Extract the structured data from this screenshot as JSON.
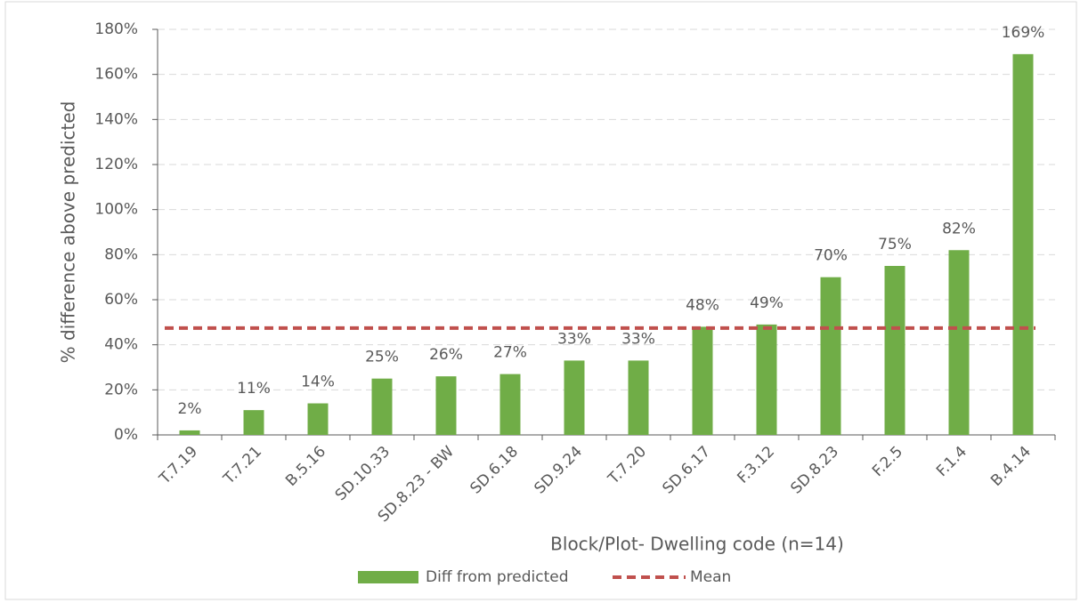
{
  "chart_data": {
    "type": "bar",
    "x_label": "Block/Plot- Dwelling code (n=14)",
    "y_label": "% difference above predicted",
    "categories": [
      "T.7.19",
      "T.7.21",
      "B.5.16",
      "SD.10.33",
      "SD.8.23 - BW",
      "SD.6.18",
      "SD.9.24",
      "T.7.20",
      "SD.6.17",
      "F.3.12",
      "SD.8.23",
      "F.2.5",
      "F.1.4",
      "B.4.14"
    ],
    "series": [
      {
        "name": "Diff from predicted",
        "color": "#70ad47",
        "values": [
          2,
          11,
          14,
          25,
          26,
          27,
          33,
          33,
          48,
          49,
          70,
          75,
          82,
          169
        ],
        "value_labels": [
          "2%",
          "11%",
          "14%",
          "25%",
          "26%",
          "27%",
          "33%",
          "33%",
          "48%",
          "49%",
          "70%",
          "75%",
          "82%",
          "169%"
        ]
      }
    ],
    "mean": {
      "name": "Mean",
      "color": "#c0504d",
      "value": 47.4
    },
    "ylim": [
      0,
      180
    ],
    "yticks": [
      {
        "value": 0,
        "label": "0%"
      },
      {
        "value": 20,
        "label": "20%"
      },
      {
        "value": 40,
        "label": "40%"
      },
      {
        "value": 60,
        "label": "60%"
      },
      {
        "value": 80,
        "label": "80%"
      },
      {
        "value": 100,
        "label": "100%"
      },
      {
        "value": 120,
        "label": "120%"
      },
      {
        "value": 140,
        "label": "140%"
      },
      {
        "value": 160,
        "label": "160%"
      },
      {
        "value": 180,
        "label": "180%"
      }
    ],
    "grid": true
  }
}
